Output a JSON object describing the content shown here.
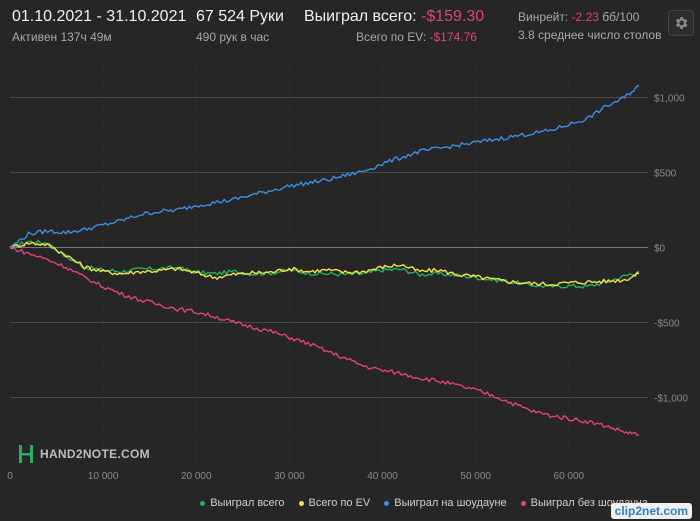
{
  "header": {
    "date_range": "01.10.2021 - 31.10.2021",
    "active": "Активен 137ч 49м",
    "hands": "67 524 Руки",
    "hands_per_hour": "490 рук в час",
    "won_total_label": "Выиграл всего:",
    "won_total_value": "-$159.30",
    "ev_label": "Всего по EV:",
    "ev_value": "-$174.76",
    "winrate_label": "Винрейт:",
    "winrate_value": "-2.23",
    "winrate_unit": "бб/100",
    "tables": "3.8 среднее число столов"
  },
  "watermark": "HAND2NOTE.COM",
  "corner_logo": "clip2net.com",
  "colors": {
    "won_total": "#27ae60",
    "ev": "#f1e34a",
    "showdown": "#3a8fe0",
    "nonshowdown": "#e0437a",
    "negative_text": "#e0437a"
  },
  "chart_data": {
    "type": "line",
    "x_ticks": [
      0,
      10000,
      20000,
      30000,
      40000,
      50000,
      60000
    ],
    "x_tick_labels": [
      "0",
      "10 000",
      "20 000",
      "30 000",
      "40 000",
      "50 000",
      "60 000"
    ],
    "y_ticks": [
      1000,
      500,
      0,
      -500,
      -1000
    ],
    "y_tick_labels": [
      "$1,000",
      "$500",
      "$0",
      "-$500",
      "-$1,000"
    ],
    "xlim": [
      0,
      68500
    ],
    "ylim": [
      -1450,
      1250
    ],
    "grid": true,
    "legend_position": "bottom-right",
    "series": [
      {
        "name": "Выиграл всего",
        "color": "#27ae60",
        "points": [
          [
            0,
            0
          ],
          [
            2000,
            40
          ],
          [
            4000,
            30
          ],
          [
            6000,
            -60
          ],
          [
            8000,
            -130
          ],
          [
            10000,
            -150
          ],
          [
            12000,
            -160
          ],
          [
            14000,
            -145
          ],
          [
            16000,
            -140
          ],
          [
            18000,
            -135
          ],
          [
            20000,
            -165
          ],
          [
            22000,
            -175
          ],
          [
            24000,
            -160
          ],
          [
            26000,
            -175
          ],
          [
            28000,
            -170
          ],
          [
            30000,
            -150
          ],
          [
            32000,
            -170
          ],
          [
            34000,
            -175
          ],
          [
            36000,
            -180
          ],
          [
            38000,
            -175
          ],
          [
            40000,
            -150
          ],
          [
            42000,
            -145
          ],
          [
            44000,
            -180
          ],
          [
            46000,
            -175
          ],
          [
            48000,
            -185
          ],
          [
            50000,
            -200
          ],
          [
            52000,
            -215
          ],
          [
            54000,
            -230
          ],
          [
            56000,
            -250
          ],
          [
            58000,
            -260
          ],
          [
            60000,
            -255
          ],
          [
            62000,
            -260
          ],
          [
            64000,
            -230
          ],
          [
            66000,
            -190
          ],
          [
            67524,
            -159
          ]
        ]
      },
      {
        "name": "Всего по EV",
        "color": "#f1e34a",
        "points": [
          [
            0,
            0
          ],
          [
            2000,
            30
          ],
          [
            4000,
            20
          ],
          [
            6000,
            -50
          ],
          [
            8000,
            -130
          ],
          [
            10000,
            -160
          ],
          [
            12000,
            -175
          ],
          [
            14000,
            -160
          ],
          [
            16000,
            -155
          ],
          [
            18000,
            -140
          ],
          [
            20000,
            -170
          ],
          [
            22000,
            -200
          ],
          [
            24000,
            -180
          ],
          [
            26000,
            -170
          ],
          [
            28000,
            -165
          ],
          [
            30000,
            -140
          ],
          [
            32000,
            -160
          ],
          [
            34000,
            -150
          ],
          [
            36000,
            -165
          ],
          [
            38000,
            -160
          ],
          [
            40000,
            -130
          ],
          [
            42000,
            -115
          ],
          [
            44000,
            -160
          ],
          [
            46000,
            -150
          ],
          [
            48000,
            -180
          ],
          [
            50000,
            -195
          ],
          [
            52000,
            -215
          ],
          [
            54000,
            -230
          ],
          [
            56000,
            -240
          ],
          [
            58000,
            -245
          ],
          [
            60000,
            -235
          ],
          [
            62000,
            -230
          ],
          [
            64000,
            -225
          ],
          [
            66000,
            -215
          ],
          [
            67524,
            -175
          ]
        ]
      },
      {
        "name": "Выиграл на шоудауне",
        "color": "#3a8fe0",
        "points": [
          [
            0,
            0
          ],
          [
            2000,
            90
          ],
          [
            4000,
            110
          ],
          [
            6000,
            100
          ],
          [
            8000,
            120
          ],
          [
            10000,
            150
          ],
          [
            12000,
            180
          ],
          [
            14000,
            220
          ],
          [
            16000,
            240
          ],
          [
            18000,
            250
          ],
          [
            20000,
            280
          ],
          [
            22000,
            300
          ],
          [
            24000,
            320
          ],
          [
            26000,
            350
          ],
          [
            28000,
            380
          ],
          [
            30000,
            410
          ],
          [
            32000,
            430
          ],
          [
            34000,
            450
          ],
          [
            36000,
            480
          ],
          [
            38000,
            510
          ],
          [
            40000,
            560
          ],
          [
            42000,
            600
          ],
          [
            44000,
            640
          ],
          [
            46000,
            660
          ],
          [
            48000,
            680
          ],
          [
            50000,
            700
          ],
          [
            52000,
            720
          ],
          [
            54000,
            740
          ],
          [
            56000,
            760
          ],
          [
            58000,
            780
          ],
          [
            60000,
            820
          ],
          [
            62000,
            860
          ],
          [
            64000,
            940
          ],
          [
            66000,
            1000
          ],
          [
            67524,
            1080
          ]
        ]
      },
      {
        "name": "Выиграл без шоудауна",
        "color": "#e0437a",
        "points": [
          [
            0,
            0
          ],
          [
            2000,
            -40
          ],
          [
            4000,
            -80
          ],
          [
            6000,
            -130
          ],
          [
            8000,
            -200
          ],
          [
            10000,
            -260
          ],
          [
            12000,
            -310
          ],
          [
            14000,
            -350
          ],
          [
            16000,
            -380
          ],
          [
            18000,
            -410
          ],
          [
            20000,
            -430
          ],
          [
            22000,
            -460
          ],
          [
            24000,
            -500
          ],
          [
            26000,
            -530
          ],
          [
            28000,
            -560
          ],
          [
            30000,
            -600
          ],
          [
            32000,
            -640
          ],
          [
            34000,
            -690
          ],
          [
            36000,
            -740
          ],
          [
            38000,
            -790
          ],
          [
            40000,
            -820
          ],
          [
            42000,
            -840
          ],
          [
            44000,
            -870
          ],
          [
            46000,
            -890
          ],
          [
            48000,
            -920
          ],
          [
            50000,
            -950
          ],
          [
            52000,
            -990
          ],
          [
            54000,
            -1040
          ],
          [
            56000,
            -1090
          ],
          [
            58000,
            -1120
          ],
          [
            60000,
            -1140
          ],
          [
            62000,
            -1160
          ],
          [
            64000,
            -1190
          ],
          [
            66000,
            -1230
          ],
          [
            67524,
            -1250
          ]
        ]
      }
    ]
  }
}
